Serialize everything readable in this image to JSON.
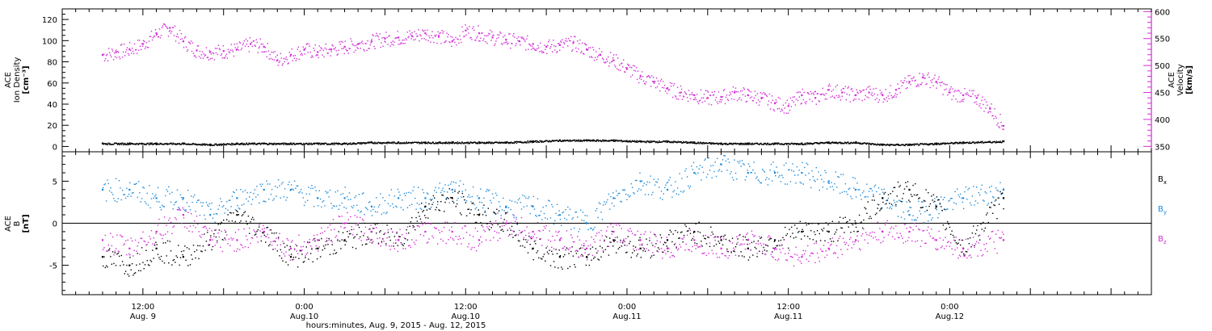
{
  "colors": {
    "black": "#000000",
    "magenta": "#d22cd6",
    "blue": "#1f8ad8"
  },
  "chart_data": [
    {
      "type": "scatter",
      "panel": "top",
      "ylabel_left": [
        "ACE",
        "Ion Density",
        "[cm⁻³]"
      ],
      "ylabel_right": [
        "ACE",
        "Velocity",
        "[km/s]"
      ],
      "left_axis": {
        "ylim": [
          -5,
          130
        ],
        "ticks": [
          0,
          20,
          40,
          60,
          80,
          100,
          120
        ]
      },
      "right_axis": {
        "ylim": [
          340,
          605
        ],
        "ticks": [
          350,
          400,
          450,
          500,
          550,
          600
        ]
      },
      "series": [
        {
          "axis": "right",
          "color": "magenta",
          "t": [
            0,
            2,
            4,
            6,
            8,
            10,
            12,
            14,
            16,
            18,
            20,
            22,
            24,
            26,
            28,
            30,
            32,
            34,
            36,
            38,
            40,
            42,
            44,
            46,
            48,
            50,
            52,
            54,
            56,
            58,
            60,
            62,
            64,
            66,
            68,
            70,
            72,
            74,
            76,
            78,
            80,
            82,
            84,
            86,
            88,
            90,
            92,
            94,
            96,
            98,
            100,
            102,
            104,
            106,
            108,
            110,
            112,
            114,
            116,
            118,
            120,
            122,
            124,
            126,
            128,
            130,
            132,
            134
          ],
          "values": [
            520,
            525,
            530,
            540,
            560,
            570,
            545,
            528,
            525,
            527,
            530,
            540,
            535,
            510,
            520,
            530,
            525,
            530,
            535,
            540,
            545,
            550,
            552,
            555,
            560,
            555,
            545,
            565,
            560,
            552,
            548,
            545,
            540,
            535,
            538,
            542,
            530,
            520,
            510,
            495,
            480,
            470,
            458,
            450,
            445,
            440,
            442,
            450,
            445,
            440,
            430,
            425,
            445,
            440,
            455,
            450,
            445,
            450,
            445,
            455,
            470,
            478,
            470,
            450,
            445,
            440,
            420,
            388
          ]
        },
        {
          "axis": "left",
          "color": "black",
          "t": [
            0,
            4,
            8,
            12,
            16,
            20,
            24,
            28,
            32,
            36,
            40,
            44,
            48,
            52,
            56,
            60,
            64,
            68,
            72,
            76,
            80,
            84,
            88,
            92,
            96,
            100,
            104,
            108,
            112,
            116,
            120,
            124,
            128,
            134
          ],
          "values": [
            3,
            3,
            3,
            3,
            2,
            3,
            3,
            3,
            3,
            3,
            4,
            4,
            4,
            4,
            4,
            4,
            5,
            6,
            6,
            6,
            5,
            5,
            4,
            3,
            3,
            3,
            3,
            4,
            4,
            2,
            2,
            3,
            4,
            5
          ]
        }
      ]
    },
    {
      "type": "scatter",
      "panel": "bottom",
      "ylabel_left": [
        "ACE",
        "B",
        "[nT]"
      ],
      "ylim": [
        -8.5,
        8.5
      ],
      "ticks": [
        -5,
        0,
        5
      ],
      "zero_line": true,
      "series": [
        {
          "name": "Bx",
          "color": "black",
          "t": [
            0,
            4,
            8,
            12,
            16,
            20,
            24,
            28,
            32,
            36,
            40,
            44,
            48,
            52,
            56,
            60,
            64,
            68,
            72,
            76,
            80,
            84,
            88,
            92,
            96,
            100,
            104,
            108,
            112,
            116,
            120,
            124,
            128,
            134
          ],
          "values": [
            -4,
            -5,
            -3,
            -4,
            -2,
            1,
            -1,
            -4,
            -3,
            -2,
            -1,
            -2,
            2,
            3,
            1,
            0,
            -3,
            -4,
            -4,
            -2,
            -3,
            -2,
            -1,
            -2,
            -3,
            -2,
            -1,
            -1,
            0,
            3,
            4,
            2,
            -3,
            3
          ]
        },
        {
          "name": "By",
          "color": "blue",
          "t": [
            0,
            4,
            8,
            12,
            16,
            20,
            24,
            28,
            32,
            36,
            40,
            44,
            48,
            52,
            56,
            60,
            64,
            68,
            72,
            76,
            80,
            84,
            88,
            92,
            96,
            100,
            104,
            108,
            112,
            116,
            120,
            124,
            128,
            134
          ],
          "values": [
            4,
            4,
            3,
            3,
            1,
            3,
            4,
            4,
            3,
            3,
            2,
            3,
            3,
            4,
            3,
            2,
            2,
            1,
            0,
            3,
            5,
            4,
            6,
            7,
            6,
            6,
            6,
            5,
            4,
            3,
            1,
            2,
            3,
            4
          ]
        },
        {
          "name": "Bz",
          "color": "magenta",
          "t": [
            0,
            4,
            8,
            12,
            16,
            20,
            24,
            28,
            32,
            36,
            40,
            44,
            48,
            52,
            56,
            60,
            64,
            68,
            72,
            76,
            80,
            84,
            88,
            92,
            96,
            100,
            104,
            108,
            112,
            116,
            120,
            124,
            128,
            134
          ],
          "values": [
            -2,
            -3,
            -1,
            1,
            -2,
            -2,
            -1,
            -3,
            -2,
            0,
            -1,
            -2,
            -1,
            -1,
            -2,
            0,
            -1,
            -2,
            -3,
            -1,
            -2,
            -3,
            -2,
            -3,
            -2,
            -3,
            -4,
            -3,
            -2,
            -1,
            -1,
            -2,
            -3,
            -2
          ]
        }
      ]
    }
  ],
  "legend": [
    {
      "base": "B",
      "sub": "x",
      "color": "black"
    },
    {
      "base": "B",
      "sub": "y",
      "color": "blue"
    },
    {
      "base": "B",
      "sub": "z",
      "color": "magenta"
    }
  ],
  "x_axis": {
    "t_min": -6,
    "t_max": 156,
    "ticks": [
      {
        "t": 6,
        "line1": "12:00",
        "line2": "Aug. 9"
      },
      {
        "t": 30,
        "line1": "0:00",
        "line2": "Aug.10"
      },
      {
        "t": 54,
        "line1": "12:00",
        "line2": "Aug.10"
      },
      {
        "t": 78,
        "line1": "0:00",
        "line2": "Aug.11"
      },
      {
        "t": 102,
        "line1": "12:00",
        "line2": "Aug.11"
      },
      {
        "t": 126,
        "line1": "0:00",
        "line2": "Aug.12"
      }
    ],
    "label": "hours:minutes, Aug.  9, 2015 - Aug. 12, 2015"
  }
}
